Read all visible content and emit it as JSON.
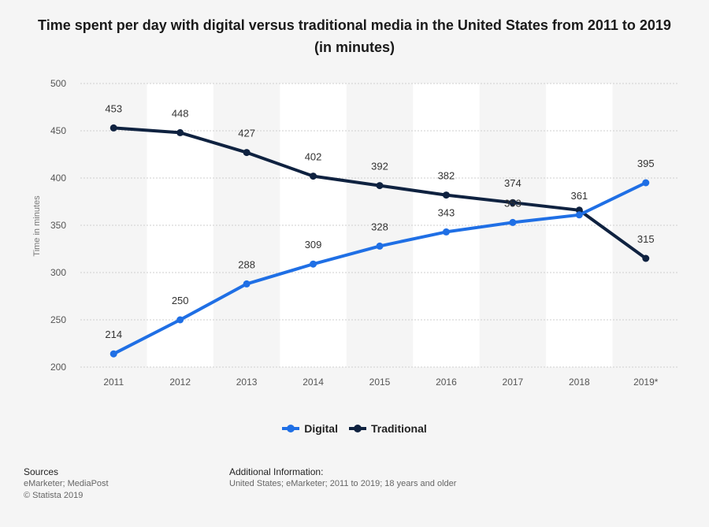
{
  "title": "Time spent per day with digital versus traditional media in the United States from 2011 to 2019 (in minutes)",
  "chart_data": {
    "type": "line",
    "categories": [
      "2011",
      "2012",
      "2013",
      "2014",
      "2015",
      "2016",
      "2017",
      "2018",
      "2019*"
    ],
    "series": [
      {
        "name": "Digital",
        "color": "#1f6fe5",
        "values": [
          214,
          250,
          288,
          309,
          328,
          343,
          353,
          361,
          395
        ]
      },
      {
        "name": "Traditional",
        "color": "#0f2240",
        "values": [
          453,
          448,
          427,
          402,
          392,
          382,
          374,
          366,
          315
        ]
      }
    ],
    "data_labels": {
      "Digital": [
        "214",
        "250",
        "288",
        "309",
        "328",
        "343",
        "353",
        "361",
        "395"
      ],
      "Traditional": [
        "453",
        "448",
        "427",
        "402",
        "392",
        "382",
        "374",
        "",
        "315"
      ]
    },
    "ylabel": "Time in minutes",
    "ylim": [
      200,
      500
    ],
    "yticks": [
      200,
      250,
      300,
      350,
      400,
      450,
      500
    ],
    "grid": true,
    "legend": "bottom-center"
  },
  "legend": {
    "digital": "Digital",
    "traditional": "Traditional"
  },
  "footer": {
    "sources_head": "Sources",
    "sources_line1": "eMarketer; MediaPost",
    "sources_line2": "© Statista 2019",
    "info_head": "Additional Information:",
    "info_text": "United States; eMarketer; 2011 to 2019; 18 years and older"
  }
}
